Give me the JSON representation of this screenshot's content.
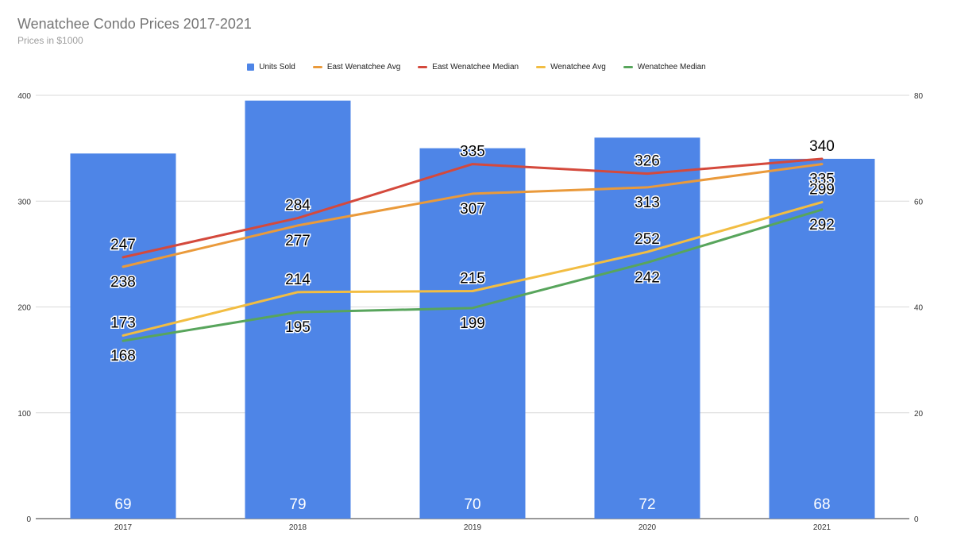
{
  "chart_data": {
    "type": "bar",
    "title": "Wenatchee Condo Prices 2017-2021",
    "subtitle": "Prices in $1000",
    "categories": [
      "2017",
      "2018",
      "2019",
      "2020",
      "2021"
    ],
    "left_axis": {
      "min": 0,
      "max": 400,
      "ticks": [
        0,
        100,
        200,
        300,
        400
      ]
    },
    "right_axis": {
      "min": 0,
      "max": 80,
      "ticks": [
        0,
        20,
        40,
        60,
        80
      ]
    },
    "grid": true,
    "legend_position": "top",
    "series": [
      {
        "name": "Units Sold",
        "type": "bar",
        "axis": "right",
        "color": "#4e85e7",
        "values": [
          69,
          79,
          70,
          72,
          68
        ]
      },
      {
        "name": "East Wenatchee Avg",
        "type": "line",
        "axis": "left",
        "color": "#ea9a3b",
        "values": [
          238,
          277,
          307,
          313,
          335
        ]
      },
      {
        "name": "East Wenatchee Median",
        "type": "line",
        "axis": "left",
        "color": "#d4493c",
        "values": [
          247,
          284,
          335,
          326,
          340
        ]
      },
      {
        "name": "Wenatchee Avg",
        "type": "line",
        "axis": "left",
        "color": "#f2bd42",
        "values": [
          173,
          214,
          215,
          252,
          299
        ]
      },
      {
        "name": "Wenatchee Median",
        "type": "line",
        "axis": "left",
        "color": "#58a55c",
        "values": [
          168,
          195,
          199,
          242,
          292
        ]
      }
    ]
  }
}
